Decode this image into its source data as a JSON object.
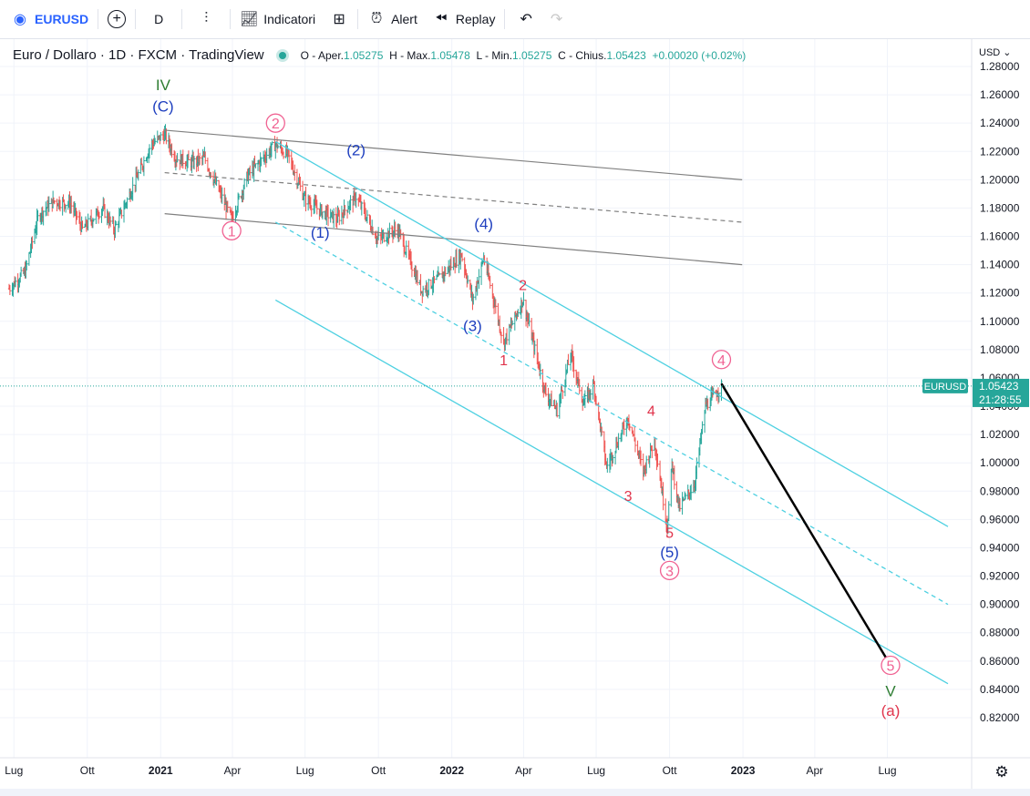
{
  "toolbar": {
    "symbol": "EURUSD",
    "interval": "D",
    "indicators_label": "Indicatori",
    "alert_label": "Alert",
    "replay_label": "Replay",
    "icons": [
      "symbol-icon",
      "add-icon",
      "bars-icon",
      "indicators-icon",
      "layout-icon",
      "alert-icon",
      "replay-icon",
      "undo-icon",
      "redo-icon"
    ]
  },
  "legend": {
    "title": "Euro / Dollaro · 1D · FXCM · TradingView",
    "o_label": "O - Aper.",
    "o_value": "1.05275",
    "h_label": "H - Max.",
    "h_value": "1.05478",
    "l_label": "L - Min.",
    "l_value": "1.05275",
    "c_label": "C - Chius.",
    "c_value": "1.05423",
    "change": "+0.00020 (+0.02%)"
  },
  "currency_label": "USD",
  "colors": {
    "up": "#26a69a",
    "down": "#ef5350",
    "channel": "#4dd0e1",
    "trend": "#808080",
    "last_price_bg": "#26a69a"
  },
  "chart_data": {
    "type": "candlestick",
    "symbol": "EURUSD",
    "y_ticks": [
      "1.28000",
      "1.26000",
      "1.24000",
      "1.22000",
      "1.20000",
      "1.18000",
      "1.16000",
      "1.14000",
      "1.12000",
      "1.10000",
      "1.08000",
      "1.06000",
      "1.04000",
      "1.02000",
      "1.00000",
      "0.98000",
      "0.96000",
      "0.94000",
      "0.92000",
      "0.90000",
      "0.88000",
      "0.86000",
      "0.84000",
      "0.82000"
    ],
    "y_range": [
      0.812,
      1.289
    ],
    "x_ticks": [
      {
        "label": "Lug",
        "date": "2020-07-01",
        "bold": false
      },
      {
        "label": "Ott",
        "date": "2020-10-01",
        "bold": false
      },
      {
        "label": "2021",
        "date": "2021-01-01",
        "bold": true
      },
      {
        "label": "Apr",
        "date": "2021-04-01",
        "bold": false
      },
      {
        "label": "Lug",
        "date": "2021-07-01",
        "bold": false
      },
      {
        "label": "Ott",
        "date": "2021-10-01",
        "bold": false
      },
      {
        "label": "2022",
        "date": "2022-01-01",
        "bold": true
      },
      {
        "label": "Apr",
        "date": "2022-04-01",
        "bold": false
      },
      {
        "label": "Lug",
        "date": "2022-07-01",
        "bold": false
      },
      {
        "label": "Ott",
        "date": "2022-10-01",
        "bold": false
      },
      {
        "label": "2023",
        "date": "2023-01-01",
        "bold": true
      },
      {
        "label": "Apr",
        "date": "2023-04-01",
        "bold": false
      },
      {
        "label": "Lug",
        "date": "2023-07-01",
        "bold": false
      }
    ],
    "x_range": [
      "2020-06-25",
      "2023-09-15"
    ],
    "last_price": "1.05423",
    "last_symbol": "EURUSD",
    "countdown": "21:28:55",
    "price_path": [
      [
        "2020-06-25",
        1.123
      ],
      [
        "2020-07-15",
        1.135
      ],
      [
        "2020-08-01",
        1.175
      ],
      [
        "2020-08-20",
        1.185
      ],
      [
        "2020-09-10",
        1.183
      ],
      [
        "2020-09-25",
        1.165
      ],
      [
        "2020-10-20",
        1.18
      ],
      [
        "2020-11-04",
        1.165
      ],
      [
        "2020-12-01",
        1.2
      ],
      [
        "2020-12-20",
        1.225
      ],
      [
        "2021-01-06",
        1.232
      ],
      [
        "2021-01-20",
        1.215
      ],
      [
        "2021-02-10",
        1.212
      ],
      [
        "2021-02-25",
        1.215
      ],
      [
        "2021-03-31",
        1.172
      ],
      [
        "2021-04-20",
        1.203
      ],
      [
        "2021-05-25",
        1.225
      ],
      [
        "2021-06-10",
        1.217
      ],
      [
        "2021-06-30",
        1.187
      ],
      [
        "2021-07-20",
        1.178
      ],
      [
        "2021-08-10",
        1.172
      ],
      [
        "2021-09-03",
        1.188
      ],
      [
        "2021-09-30",
        1.158
      ],
      [
        "2021-10-25",
        1.165
      ],
      [
        "2021-11-24",
        1.122
      ],
      [
        "2021-12-15",
        1.13
      ],
      [
        "2022-01-13",
        1.147
      ],
      [
        "2022-01-27",
        1.115
      ],
      [
        "2022-02-10",
        1.145
      ],
      [
        "2022-03-07",
        1.085
      ],
      [
        "2022-03-31",
        1.115
      ],
      [
        "2022-04-28",
        1.05
      ],
      [
        "2022-05-13",
        1.037
      ],
      [
        "2022-05-30",
        1.077
      ],
      [
        "2022-06-15",
        1.042
      ],
      [
        "2022-06-28",
        1.055
      ],
      [
        "2022-07-14",
        0.997
      ],
      [
        "2022-08-10",
        1.032
      ],
      [
        "2022-08-29",
        0.994
      ],
      [
        "2022-09-12",
        1.016
      ],
      [
        "2022-09-28",
        0.955
      ],
      [
        "2022-10-04",
        0.999
      ],
      [
        "2022-10-13",
        0.968
      ],
      [
        "2022-11-01",
        0.985
      ],
      [
        "2022-11-15",
        1.04
      ],
      [
        "2022-12-05",
        1.054
      ]
    ],
    "trendlines": [
      {
        "kind": "upper",
        "x1": "2021-01-06",
        "y1": 1.235,
        "x2": "2022-12-31",
        "y2": 1.2
      },
      {
        "kind": "middle-dashed",
        "x1": "2021-01-06",
        "y1": 1.205,
        "x2": "2022-12-31",
        "y2": 1.17
      },
      {
        "kind": "lower",
        "x1": "2021-01-06",
        "y1": 1.176,
        "x2": "2022-12-31",
        "y2": 1.14
      }
    ],
    "channel": [
      {
        "kind": "top",
        "x1": "2021-05-25",
        "y1": 1.227,
        "x2": "2023-09-15",
        "y2": 0.955
      },
      {
        "kind": "middle-dashed",
        "x1": "2021-05-25",
        "y1": 1.17,
        "x2": "2023-09-15",
        "y2": 0.9
      },
      {
        "kind": "bottom",
        "x1": "2021-05-25",
        "y1": 1.115,
        "x2": "2023-09-15",
        "y2": 0.844
      }
    ],
    "projection": {
      "x1": "2022-12-05",
      "y1": 1.056,
      "x2": "2023-07-05",
      "y2": 0.857
    },
    "wave_labels": [
      {
        "text": "IV",
        "date": "2021-01-04",
        "price": 1.267,
        "style": "green"
      },
      {
        "text": "(C)",
        "date": "2021-01-04",
        "price": 1.252,
        "style": "blue"
      },
      {
        "text": "2",
        "date": "2021-05-25",
        "price": 1.24,
        "style": "circle"
      },
      {
        "text": "1",
        "date": "2021-03-31",
        "price": 1.164,
        "style": "circle"
      },
      {
        "text": "(2)",
        "date": "2021-09-03",
        "price": 1.221,
        "style": "blue"
      },
      {
        "text": "(1)",
        "date": "2021-07-20",
        "price": 1.163,
        "style": "blue"
      },
      {
        "text": "(4)",
        "date": "2022-02-10",
        "price": 1.169,
        "style": "blue"
      },
      {
        "text": "2",
        "date": "2022-03-31",
        "price": 1.126,
        "style": "red"
      },
      {
        "text": "(3)",
        "date": "2022-01-27",
        "price": 1.097,
        "style": "blue"
      },
      {
        "text": "1",
        "date": "2022-03-07",
        "price": 1.073,
        "style": "red"
      },
      {
        "text": "4",
        "date": "2022-09-08",
        "price": 1.037,
        "style": "red"
      },
      {
        "text": "4",
        "date": "2022-12-05",
        "price": 1.073,
        "style": "circle"
      },
      {
        "text": "3",
        "date": "2022-08-10",
        "price": 0.977,
        "style": "red"
      },
      {
        "text": "5",
        "date": "2022-10-01",
        "price": 0.951,
        "style": "red"
      },
      {
        "text": "(5)",
        "date": "2022-10-01",
        "price": 0.937,
        "style": "blue"
      },
      {
        "text": "3",
        "date": "2022-10-01",
        "price": 0.924,
        "style": "circle"
      },
      {
        "text": "5",
        "date": "2023-07-05",
        "price": 0.857,
        "style": "circle"
      },
      {
        "text": "V",
        "date": "2023-07-05",
        "price": 0.839,
        "style": "green"
      },
      {
        "text": "(a)",
        "date": "2023-07-05",
        "price": 0.825,
        "style": "red-paren"
      }
    ]
  }
}
